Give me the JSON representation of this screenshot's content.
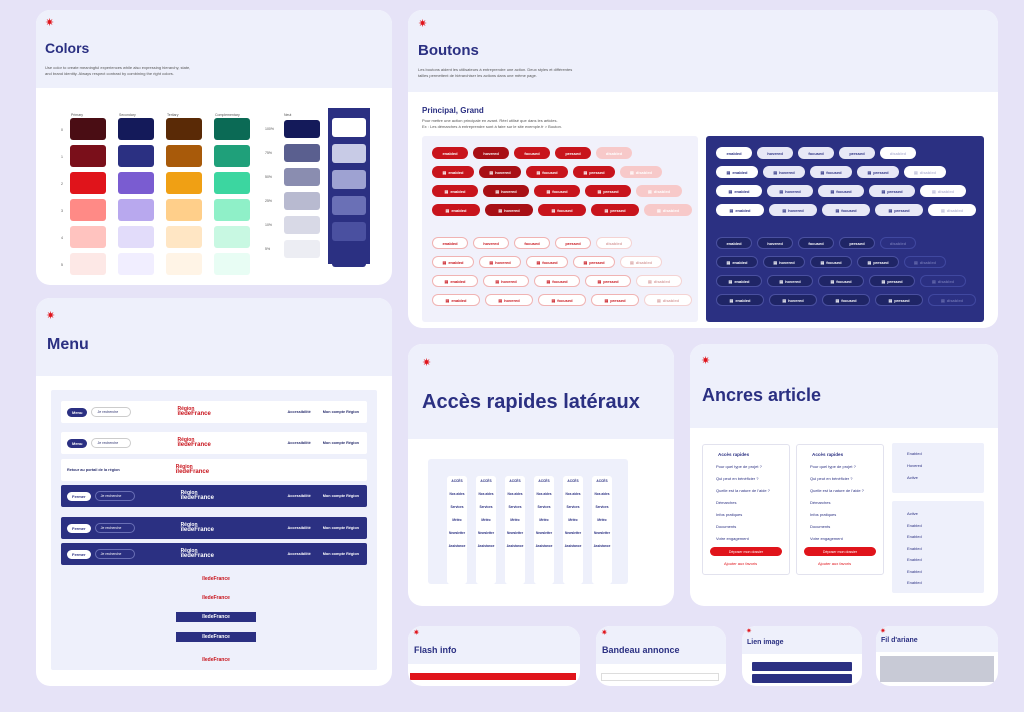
{
  "colors": {
    "title": "Colors",
    "desc": "Use color to create meaningful experiences while also expressing hierarchy, state, and brand identity. Always respect contrast by combining the right colors.",
    "cols": [
      "Primary",
      "Secondary",
      "Tertiary",
      "Complementary"
    ],
    "neutral": "Neut",
    "rows": [
      "0",
      "1",
      "2",
      "3",
      "4",
      "5"
    ],
    "pcts": [
      "100%",
      "75%",
      "50%",
      "25%",
      "10%",
      "5%"
    ],
    "palette": {
      "primary": [
        "#4a0d14",
        "#7a0f1a",
        "#e0141b",
        "#ff8a86",
        "#ffc3bf",
        "#fde8e6"
      ],
      "secondary": [
        "#141a5a",
        "#2b3082",
        "#7a5cd1",
        "#b8a8ee",
        "#e2dcfa",
        "#f1eeff"
      ],
      "tertiary": [
        "#5a2a06",
        "#a85a0a",
        "#f0a014",
        "#ffcf8a",
        "#ffe6c4",
        "#fff4e6"
      ],
      "complementary": [
        "#0b6a55",
        "#1fa07a",
        "#3cd6a0",
        "#8ff0c8",
        "#c8f8e2",
        "#e8fdf4"
      ],
      "neutral": [
        "#141a5a",
        "#5a5f8f",
        "#8a8db0",
        "#b8bad0",
        "#d8d9e6",
        "#ecedf3"
      ],
      "navy": [
        "#ffffff",
        "#c8cbe6",
        "#9ea2d2",
        "#6a70b6",
        "#4a50a0",
        "#2b3082"
      ]
    }
  },
  "buttons": {
    "title": "Boutons",
    "desc": "Les boutons aident les utilisateurs à entreprendre une action. Deux styles et différentes tailles permettent de hiérarchiser les actions dans une même page.",
    "subtitle": "Principal, Grand",
    "subdesc": "Pour mettre une action principale en avant. Réel utilisé que dans les articles.",
    "subdesc2": "Ex : Les démarches à entreprendre sont à faire sur le site exemple.fr > Bouton.",
    "enabled": "enabled",
    "hovered": "hovered",
    "focused": "focused",
    "pressed": "pressed",
    "disabled": "disabled"
  },
  "menu": {
    "title": "Menu",
    "menu_btn": "Menu",
    "search_ph": "Je recherche",
    "fermer": "Fermer",
    "access": "Accessibilité",
    "account": "Mon compte Région",
    "back": "Retour au portail de la région",
    "logo_top": "Région",
    "logo_bot": "îledeFrance"
  },
  "acces": {
    "title": "Accès rapides latéraux",
    "items": [
      "ACCÈS",
      "Nos aides",
      "Services",
      "Météo",
      "Newsletter",
      "Assistance"
    ]
  },
  "ancres": {
    "title": "Ancres article",
    "heading": "Accès rapides",
    "links": [
      "Pour quel type de projet ?",
      "Qui peut en bénéficier ?",
      "Quelle est la nature de l'aide ?",
      "Démarches",
      "Infos pratiques",
      "Documents",
      "Votre engagement"
    ],
    "cta": "Déposer mon dossier",
    "fav": "Ajouter aux favoris",
    "states1": [
      "Enabled",
      "Hovered",
      "Active"
    ],
    "states2": [
      "Active",
      "Enabled",
      "Enabled",
      "Enabled",
      "Enabled",
      "Enabled",
      "Enabled"
    ]
  },
  "flash": {
    "title": "Flash info"
  },
  "bandeau": {
    "title": "Bandeau annonce"
  },
  "lien": {
    "title": "Lien image"
  },
  "fil": {
    "title": "Fil d'ariane"
  }
}
